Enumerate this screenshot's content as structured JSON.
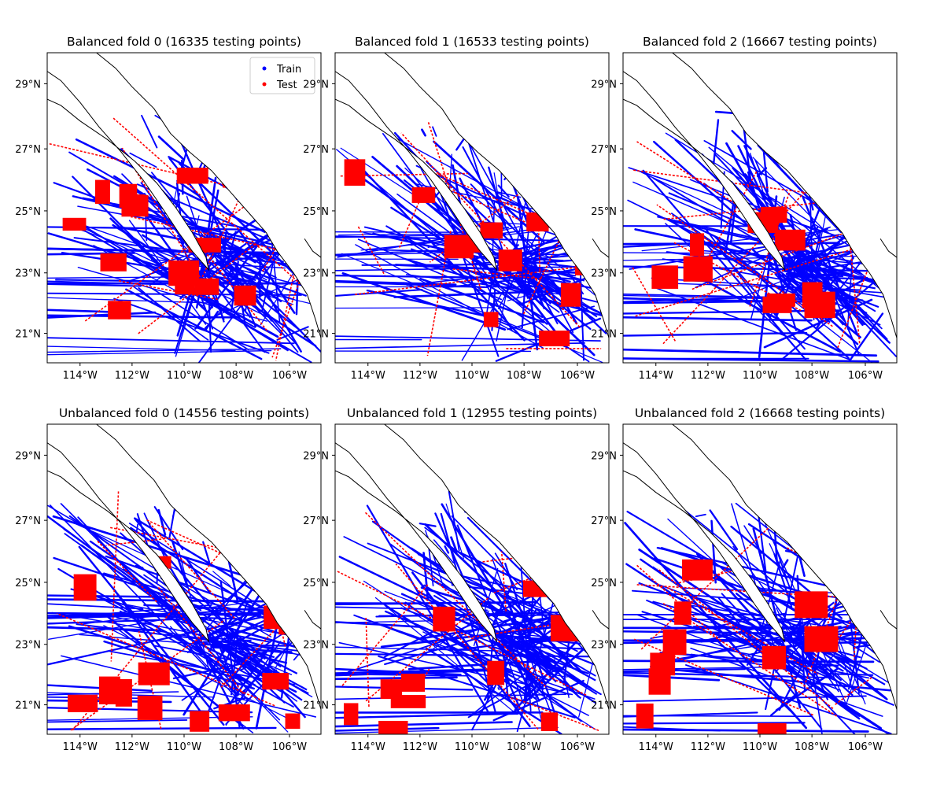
{
  "figure": {
    "panels": [
      {
        "title": "Balanced fold 0 (16335 testing points)",
        "show_legend": true
      },
      {
        "title": "Balanced fold 1 (16533 testing points)",
        "show_legend": false
      },
      {
        "title": "Balanced fold 2 (16667 testing points)",
        "show_legend": false
      },
      {
        "title": "Unbalanced fold 0 (14556 testing points)",
        "show_legend": false
      },
      {
        "title": "Unbalanced fold 1 (12955 testing points)",
        "show_legend": false
      },
      {
        "title": "Unbalanced fold 2 (16668 testing points)",
        "show_legend": false
      }
    ],
    "legend": {
      "train_label": "Train",
      "test_label": "Test"
    },
    "axes": {
      "x_ticks": [
        "114°W",
        "112°W",
        "110°W",
        "108°W",
        "106°W"
      ],
      "y_ticks": [
        "29°N",
        "27°N",
        "25°N",
        "23°N",
        "21°N"
      ],
      "lon_range": [
        -115.0,
        -105.0
      ],
      "lat_range": [
        20.0,
        30.0
      ]
    },
    "colors": {
      "train": "#0000ff",
      "test": "#ff0000",
      "coastline": "#000000"
    }
  }
}
